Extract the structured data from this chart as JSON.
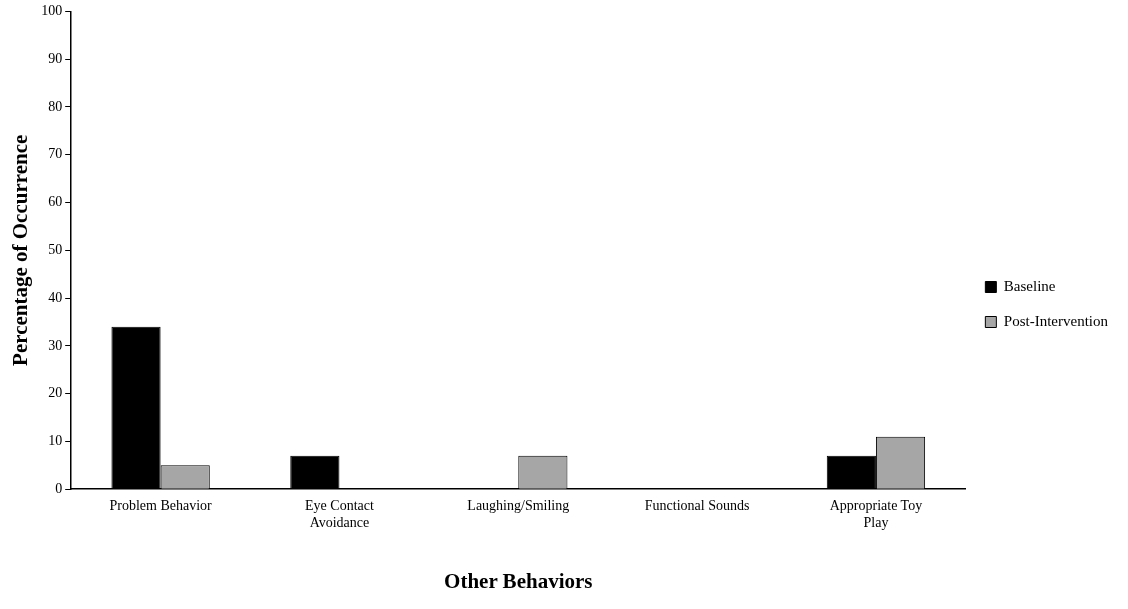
{
  "chart_data": {
    "type": "bar",
    "xlabel": "Other Behaviors",
    "ylabel": "Percentage of Occurrence",
    "categories": [
      "Problem Behavior",
      "Eye Contact Avoidance",
      "Laughing/Smiling",
      "Functional Sounds",
      "Appropriate Toy Play"
    ],
    "series": [
      {
        "name": "Baseline",
        "color": "#000000",
        "values": [
          34,
          7,
          0,
          0,
          7
        ]
      },
      {
        "name": "Post-Intervention",
        "color": "#a6a6a6",
        "values": [
          5,
          0,
          7,
          0,
          11
        ]
      }
    ],
    "ylim": [
      0,
      100
    ],
    "yticks": [
      0,
      10,
      20,
      30,
      40,
      50,
      60,
      70,
      80,
      90,
      100
    ],
    "grid": false,
    "legend": "right"
  }
}
